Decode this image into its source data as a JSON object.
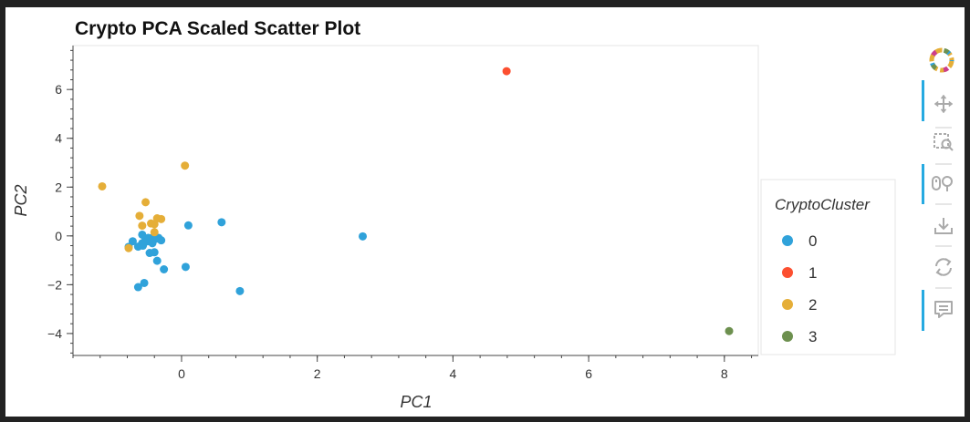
{
  "colors": {
    "cluster0": "#30a2da",
    "cluster1": "#fc4f30",
    "cluster2": "#e5ae38",
    "cluster3": "#6d904f",
    "toolbar_active": "#26aae1",
    "toolbar_icon": "#aaaaaa"
  },
  "toolbar": {
    "logo_icon": "bokeh-logo-icon",
    "tools": [
      {
        "icon": "pan-icon",
        "active": true
      },
      {
        "icon": "box-zoom-icon",
        "active": false
      },
      {
        "icon": "wheel-zoom-icon",
        "active": true
      },
      {
        "icon": "save-icon",
        "active": false
      },
      {
        "icon": "reset-icon",
        "active": false
      },
      {
        "icon": "hover-icon",
        "active": true
      }
    ]
  },
  "chart_data": {
    "type": "scatter",
    "title": "Crypto PCA Scaled Scatter Plot",
    "xlabel": "PC1",
    "ylabel": "PC2",
    "xlim": [
      -1.6,
      8.5
    ],
    "ylim": [
      -4.9,
      7.8
    ],
    "x_ticks": [
      0,
      2,
      4,
      6,
      8
    ],
    "x_tick_labels": [
      "0",
      "2",
      "4",
      "6",
      "8"
    ],
    "y_ticks": [
      -4,
      -2,
      0,
      2,
      4,
      6
    ],
    "y_tick_labels": [
      "−4",
      "−2",
      "0",
      "2",
      "4",
      "6"
    ],
    "grid": false,
    "legend": {
      "title": "CryptoCluster",
      "placement": "right"
    },
    "series": [
      {
        "name": "0",
        "color": "#30a2da",
        "x": [
          -0.78,
          -0.72,
          -0.64,
          -0.58,
          -0.53,
          -0.49,
          -0.46,
          -0.42,
          -0.38,
          -0.34,
          -0.3,
          -0.58,
          -0.47,
          -0.4,
          -0.55,
          -0.36,
          -0.26,
          -0.64,
          -0.57,
          0.06,
          0.1,
          0.59,
          0.86,
          2.67,
          -0.5,
          -0.43
        ],
        "y": [
          -0.45,
          -0.22,
          -0.44,
          -0.3,
          -0.12,
          -0.08,
          -0.1,
          -0.15,
          -0.12,
          -0.08,
          -0.18,
          0.05,
          -0.7,
          -0.67,
          -1.93,
          -1.02,
          -1.37,
          -2.1,
          -0.4,
          -1.27,
          0.43,
          0.56,
          -2.26,
          -0.02,
          -0.22,
          -0.3
        ]
      },
      {
        "name": "1",
        "color": "#fc4f30",
        "x": [
          4.79
        ],
        "y": [
          6.75
        ]
      },
      {
        "name": "2",
        "color": "#e5ae38",
        "x": [
          -1.17,
          0.05,
          -0.53,
          -0.62,
          -0.58,
          -0.36,
          -0.3,
          -0.45,
          -0.4,
          -0.78,
          -0.4
        ],
        "y": [
          2.03,
          2.88,
          1.38,
          0.82,
          0.42,
          0.72,
          0.69,
          0.51,
          0.48,
          -0.5,
          0.15
        ]
      },
      {
        "name": "3",
        "color": "#6d904f",
        "x": [
          8.07
        ],
        "y": [
          -3.9
        ]
      }
    ]
  }
}
